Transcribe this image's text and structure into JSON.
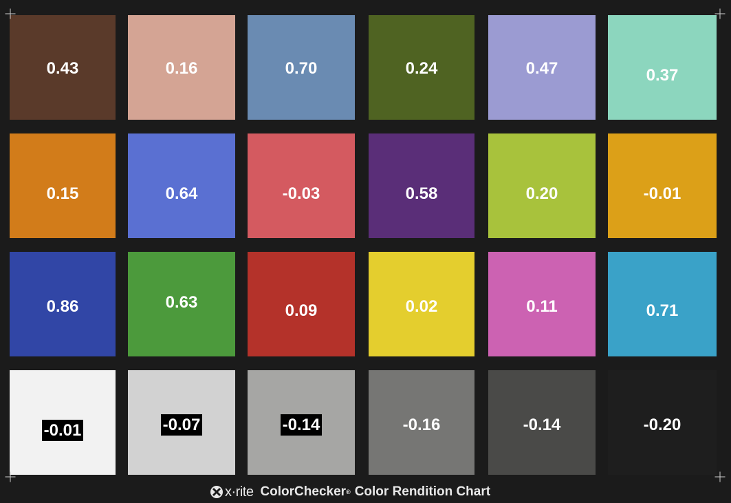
{
  "chart": {
    "brand": "x·rite",
    "product": "ColorChecker",
    "registered_mark": "®",
    "subtitle": "Color Rendition Chart"
  },
  "patches": [
    {
      "color": "#5a3a2a",
      "value": "0.43",
      "boxed": false
    },
    {
      "color": "#d4a494",
      "value": "0.16",
      "boxed": false
    },
    {
      "color": "#6a8bb2",
      "value": "0.70",
      "boxed": false
    },
    {
      "color": "#4f6322",
      "value": "0.24",
      "boxed": false
    },
    {
      "color": "#9b9bd2",
      "value": "0.47",
      "boxed": false
    },
    {
      "color": "#8cd6be",
      "value": "0.37",
      "boxed": false
    },
    {
      "color": "#d27c1a",
      "value": "0.15",
      "boxed": false
    },
    {
      "color": "#5a70d2",
      "value": "0.64",
      "boxed": false
    },
    {
      "color": "#d45a60",
      "value": "-0.03",
      "boxed": false
    },
    {
      "color": "#5a2e78",
      "value": "0.58",
      "boxed": false
    },
    {
      "color": "#a8c23c",
      "value": "0.20",
      "boxed": false
    },
    {
      "color": "#dca018",
      "value": "-0.01",
      "boxed": false
    },
    {
      "color": "#3146a6",
      "value": "0.86",
      "boxed": false
    },
    {
      "color": "#4c9a3c",
      "value": "0.63",
      "boxed": false
    },
    {
      "color": "#b4322a",
      "value": "0.09",
      "boxed": false
    },
    {
      "color": "#e4ce2e",
      "value": "0.02",
      "boxed": false
    },
    {
      "color": "#cc62b2",
      "value": "0.11",
      "boxed": false
    },
    {
      "color": "#3aa2c8",
      "value": "0.71",
      "boxed": false
    },
    {
      "color": "#f2f2f2",
      "value": "-0.01",
      "boxed": true
    },
    {
      "color": "#d2d2d2",
      "value": "-0.07",
      "boxed": true
    },
    {
      "color": "#a6a6a4",
      "value": "-0.14",
      "boxed": true
    },
    {
      "color": "#767674",
      "value": "-0.16",
      "boxed": false
    },
    {
      "color": "#4a4a48",
      "value": "-0.14",
      "boxed": false
    },
    {
      "color": "#1e1e1e",
      "value": "-0.20",
      "boxed": false
    }
  ]
}
